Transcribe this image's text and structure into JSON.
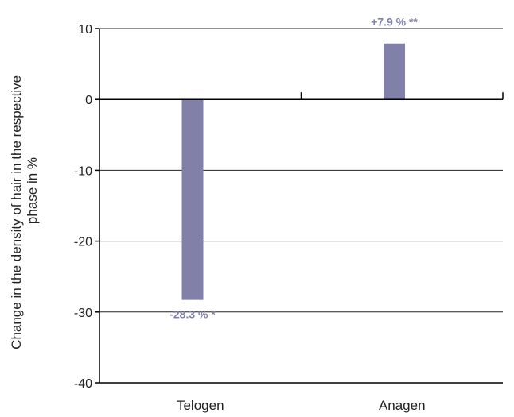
{
  "chart_data": {
    "type": "bar",
    "title": "",
    "xlabel": "",
    "ylabel": [
      "Change in the density of hair in the respective",
      "phase in %"
    ],
    "categories": [
      "Telogen",
      "Anagen"
    ],
    "values": [
      -28.3,
      7.9
    ],
    "data_labels": [
      "-28.3 % *",
      "+7.9 % **"
    ],
    "ylim": [
      -40,
      10
    ],
    "yticks": [
      10,
      0,
      -10,
      -20,
      -30,
      -40
    ],
    "ytick_labels": [
      "10",
      "0",
      "-10",
      "-20",
      "-30",
      "-40"
    ],
    "grid": true,
    "legend": "none",
    "colors": {
      "bar": "#8080a8",
      "label": "#8080a8",
      "grid": "#222222",
      "axis": "#000000"
    }
  }
}
